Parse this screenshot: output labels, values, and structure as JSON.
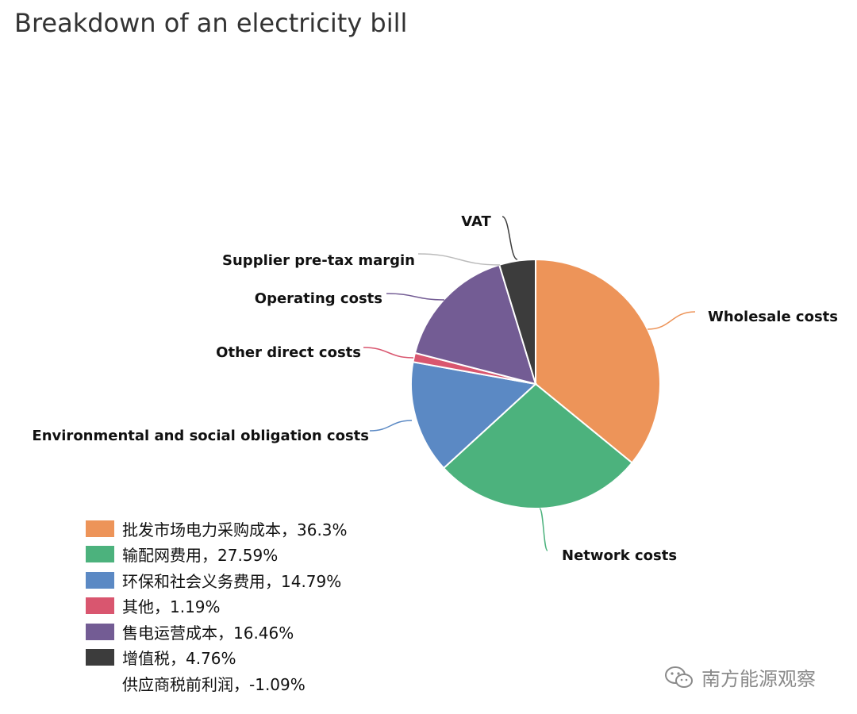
{
  "title": "Breakdown of an electricity bill",
  "chart_data": {
    "type": "pie",
    "title": "Breakdown of an electricity bill",
    "slices": [
      {
        "name": "Wholesale costs",
        "legend": "批发市场电力采购成本，36.3%",
        "value": 36.3,
        "color": "#ED9459"
      },
      {
        "name": "Network costs",
        "legend": "输配网费用，27.59%",
        "value": 27.59,
        "color": "#4CB27D"
      },
      {
        "name": "Environmental and social obligation costs",
        "legend": "环保和社会义务费用，14.79%",
        "value": 14.79,
        "color": "#5B89C4"
      },
      {
        "name": "Other direct costs",
        "legend": "其他，1.19%",
        "value": 1.19,
        "color": "#D9566F"
      },
      {
        "name": "Operating costs",
        "legend": "售电运营成本，16.46%",
        "value": 16.46,
        "color": "#735C94"
      },
      {
        "name": "VAT",
        "legend": "增值税，4.76%",
        "value": 4.76,
        "color": "#3C3C3C"
      },
      {
        "name": "Supplier pre-tax margin",
        "legend": "供应商税前利润，-1.09%",
        "value": -1.09,
        "color": "#BBBBBB"
      }
    ],
    "legend_position": "bottom-left"
  },
  "watermark": {
    "text": "南方能源观察",
    "icon": "wechat-icon"
  }
}
